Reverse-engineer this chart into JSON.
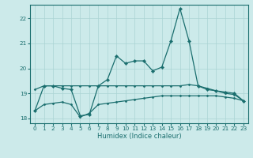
{
  "xlabel": "Humidex (Indice chaleur)",
  "background_color": "#cceaea",
  "grid_color": "#aad4d4",
  "line_color": "#1a6e6e",
  "xlim": [
    -0.5,
    23.5
  ],
  "ylim": [
    17.8,
    22.55
  ],
  "yticks": [
    18,
    19,
    20,
    21,
    22
  ],
  "xticks": [
    0,
    1,
    2,
    3,
    4,
    5,
    6,
    7,
    8,
    9,
    10,
    11,
    12,
    13,
    14,
    15,
    16,
    17,
    18,
    19,
    20,
    21,
    22,
    23
  ],
  "series1_x": [
    0,
    1,
    2,
    3,
    4,
    5,
    6,
    7,
    8,
    9,
    10,
    11,
    12,
    13,
    14,
    15,
    16,
    17,
    18,
    19,
    20,
    21,
    22,
    23
  ],
  "series1_y": [
    18.3,
    19.3,
    19.3,
    19.2,
    19.15,
    18.1,
    18.15,
    19.3,
    19.55,
    20.5,
    20.2,
    20.3,
    20.3,
    19.9,
    20.05,
    21.1,
    22.4,
    21.1,
    19.3,
    19.15,
    19.1,
    19.05,
    19.0,
    18.7
  ],
  "series2_x": [
    0,
    1,
    2,
    3,
    4,
    5,
    6,
    7,
    8,
    9,
    10,
    11,
    12,
    13,
    14,
    15,
    16,
    17,
    18,
    19,
    20,
    21,
    22,
    23
  ],
  "series2_y": [
    19.15,
    19.3,
    19.3,
    19.3,
    19.3,
    19.3,
    19.3,
    19.3,
    19.3,
    19.3,
    19.3,
    19.3,
    19.3,
    19.3,
    19.3,
    19.3,
    19.3,
    19.35,
    19.3,
    19.2,
    19.1,
    19.0,
    18.95,
    18.7
  ],
  "series3_x": [
    0,
    1,
    2,
    3,
    4,
    5,
    6,
    7,
    8,
    9,
    10,
    11,
    12,
    13,
    14,
    15,
    16,
    17,
    18,
    19,
    20,
    21,
    22,
    23
  ],
  "series3_y": [
    18.3,
    18.55,
    18.6,
    18.65,
    18.55,
    18.05,
    18.2,
    18.55,
    18.6,
    18.65,
    18.7,
    18.75,
    18.8,
    18.85,
    18.9,
    18.9,
    18.9,
    18.9,
    18.9,
    18.9,
    18.9,
    18.85,
    18.8,
    18.7
  ]
}
